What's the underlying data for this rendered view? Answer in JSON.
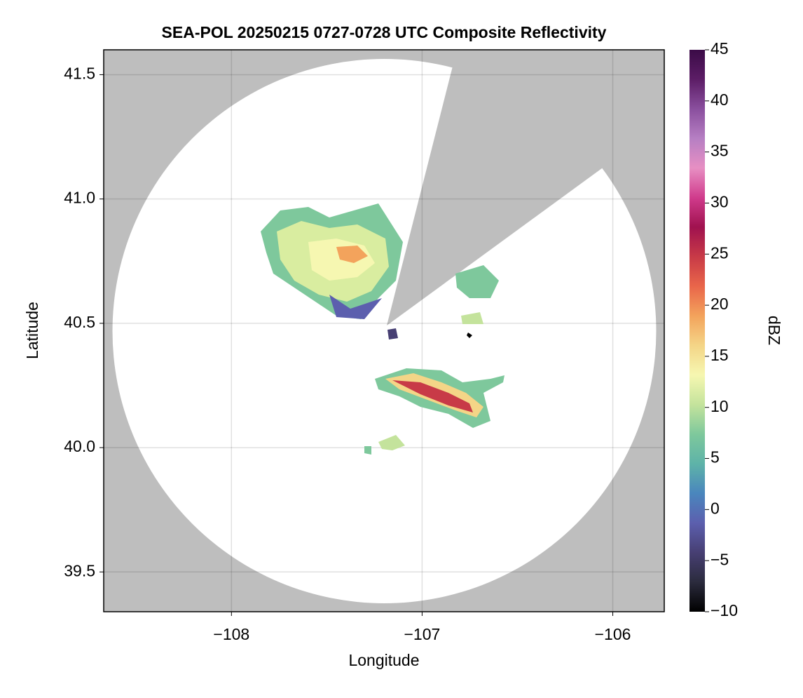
{
  "chart_data": {
    "type": "radar-composite",
    "title": "SEA-POL 20250215 0727-0728 UTC Composite Reflectivity",
    "x_label": "Longitude",
    "y_label": "Latitude",
    "xlim": [
      -108.67,
      -105.73
    ],
    "xticks": [
      {
        "value": -108,
        "label": "−108"
      },
      {
        "value": -107,
        "label": "−107"
      },
      {
        "value": -106,
        "label": "−106"
      }
    ],
    "ylim": [
      39.34,
      41.6
    ],
    "yticks": [
      {
        "value": 39.5,
        "label": "39.5"
      },
      {
        "value": 40,
        "label": "40.0"
      },
      40.5,
      {
        "value": 41,
        "label": "41.0"
      },
      41.5
    ],
    "grid": true,
    "colorbar": {
      "label": "dBZ",
      "lim": [
        -10,
        45
      ],
      "ticks": [
        {
          "value": -10,
          "label": "−10"
        },
        {
          "value": -5,
          "label": "−5"
        },
        0,
        5,
        10,
        15,
        20,
        25,
        30,
        35,
        40,
        45
      ],
      "colors": [
        "#000000",
        "#2b2b3d",
        "#473f73",
        "#5c5fae",
        "#4a86bd",
        "#5eb3a8",
        "#7ec89c",
        "#c4e39c",
        "#f6f7b1",
        "#f4d587",
        "#f3a35c",
        "#e9664a",
        "#c83a47",
        "#a0124f",
        "#d03b8c",
        "#e78fc3",
        "#b67fc3",
        "#8a4f9e",
        "#5c1d66",
        "#3b0b47"
      ]
    }
  }
}
